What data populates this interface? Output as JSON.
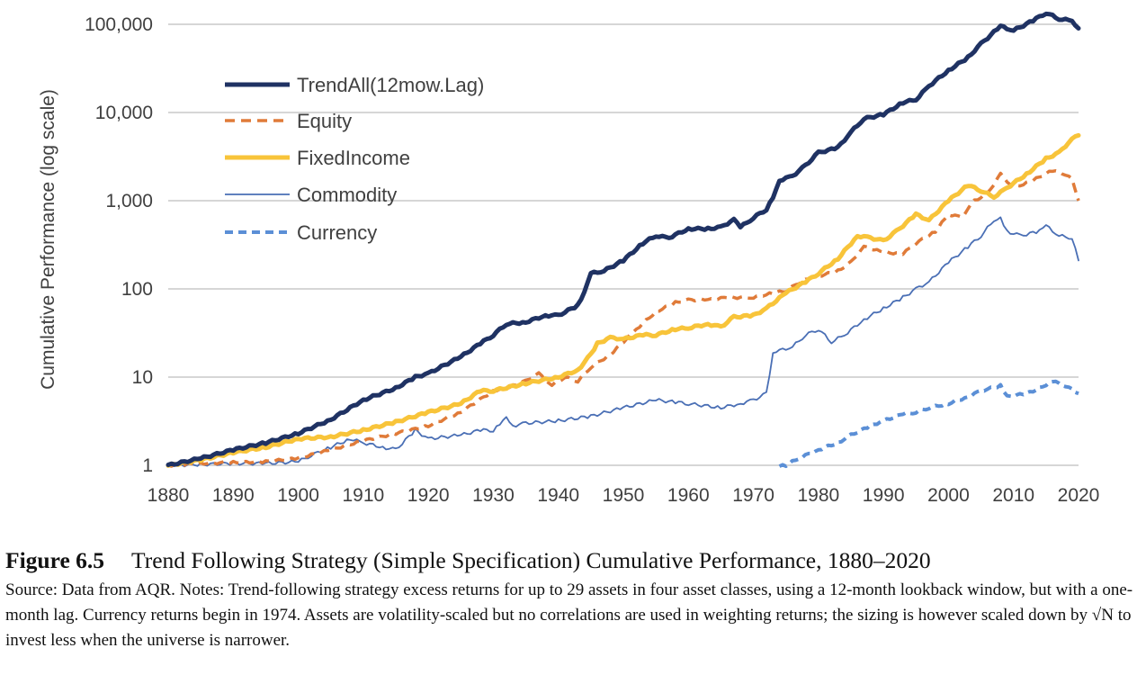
{
  "chart_data": {
    "type": "line",
    "ylabel": "Cumulative Performance (log scale)",
    "xlabel": "",
    "yscale": "log",
    "xlim": [
      1880,
      2020
    ],
    "ylim": [
      1,
      100000
    ],
    "grid": true,
    "legend_position": "top-left",
    "x_ticks": [
      "1880",
      "1890",
      "1900",
      "1910",
      "1920",
      "1930",
      "1940",
      "1950",
      "1960",
      "1970",
      "1980",
      "1990",
      "2000",
      "2010",
      "2020"
    ],
    "y_ticks": [
      {
        "value": 1,
        "label": "1"
      },
      {
        "value": 10,
        "label": "10"
      },
      {
        "value": 100,
        "label": "100"
      },
      {
        "value": 1000,
        "label": "1,000"
      },
      {
        "value": 10000,
        "label": "10,000"
      },
      {
        "value": 100000,
        "label": "100,000"
      }
    ],
    "series": [
      {
        "name": "TrendAll(12mow.Lag)",
        "color": "#1f3263",
        "style": "solid",
        "width": 5,
        "points": [
          [
            1880,
            1
          ],
          [
            1885,
            1.2
          ],
          [
            1890,
            1.5
          ],
          [
            1895,
            1.8
          ],
          [
            1900,
            2.3
          ],
          [
            1905,
            3.3
          ],
          [
            1910,
            5.5
          ],
          [
            1915,
            7.5
          ],
          [
            1918,
            10
          ],
          [
            1920,
            11
          ],
          [
            1925,
            17
          ],
          [
            1928,
            24
          ],
          [
            1930,
            30
          ],
          [
            1932,
            40
          ],
          [
            1935,
            42
          ],
          [
            1938,
            50
          ],
          [
            1940,
            50
          ],
          [
            1943,
            65
          ],
          [
            1944,
            90
          ],
          [
            1945,
            150
          ],
          [
            1947,
            160
          ],
          [
            1950,
            210
          ],
          [
            1953,
            330
          ],
          [
            1955,
            400
          ],
          [
            1957,
            380
          ],
          [
            1960,
            480
          ],
          [
            1963,
            480
          ],
          [
            1965,
            500
          ],
          [
            1967,
            610
          ],
          [
            1968,
            500
          ],
          [
            1970,
            640
          ],
          [
            1972,
            800
          ],
          [
            1973,
            1100
          ],
          [
            1974,
            1700
          ],
          [
            1976,
            1900
          ],
          [
            1978,
            2500
          ],
          [
            1980,
            3500
          ],
          [
            1983,
            4000
          ],
          [
            1985,
            6000
          ],
          [
            1987,
            8500
          ],
          [
            1990,
            9500
          ],
          [
            1993,
            13000
          ],
          [
            1995,
            14000
          ],
          [
            1997,
            20000
          ],
          [
            2000,
            30000
          ],
          [
            2003,
            42000
          ],
          [
            2005,
            60000
          ],
          [
            2008,
            95000
          ],
          [
            2010,
            85000
          ],
          [
            2013,
            110000
          ],
          [
            2015,
            135000
          ],
          [
            2017,
            115000
          ],
          [
            2019,
            110000
          ],
          [
            2020,
            90000
          ]
        ]
      },
      {
        "name": "Equity",
        "color": "#e07b39",
        "style": "dashed",
        "width": 3.5,
        "points": [
          [
            1880,
            1
          ],
          [
            1885,
            1.05
          ],
          [
            1890,
            1.08
          ],
          [
            1895,
            1.1
          ],
          [
            1900,
            1.2
          ],
          [
            1905,
            1.5
          ],
          [
            1910,
            1.9
          ],
          [
            1915,
            2.3
          ],
          [
            1920,
            2.8
          ],
          [
            1925,
            4
          ],
          [
            1930,
            7
          ],
          [
            1933,
            8
          ],
          [
            1935,
            9
          ],
          [
            1937,
            11
          ],
          [
            1939,
            8
          ],
          [
            1941,
            10
          ],
          [
            1943,
            9
          ],
          [
            1945,
            13
          ],
          [
            1948,
            18
          ],
          [
            1952,
            35
          ],
          [
            1955,
            55
          ],
          [
            1958,
            70
          ],
          [
            1960,
            75
          ],
          [
            1963,
            75
          ],
          [
            1966,
            80
          ],
          [
            1970,
            80
          ],
          [
            1973,
            90
          ],
          [
            1975,
            95
          ],
          [
            1978,
            130
          ],
          [
            1980,
            140
          ],
          [
            1983,
            160
          ],
          [
            1985,
            200
          ],
          [
            1987,
            300
          ],
          [
            1990,
            260
          ],
          [
            1993,
            250
          ],
          [
            1995,
            330
          ],
          [
            1998,
            450
          ],
          [
            2000,
            700
          ],
          [
            2002,
            650
          ],
          [
            2004,
            1000
          ],
          [
            2006,
            1200
          ],
          [
            2008,
            2000
          ],
          [
            2010,
            1400
          ],
          [
            2013,
            1700
          ],
          [
            2016,
            2200
          ],
          [
            2018,
            2000
          ],
          [
            2019,
            1800
          ],
          [
            2020,
            1000
          ]
        ]
      },
      {
        "name": "FixedIncome",
        "color": "#f8c43a",
        "style": "solid",
        "width": 5,
        "points": [
          [
            1880,
            1
          ],
          [
            1885,
            1.15
          ],
          [
            1890,
            1.4
          ],
          [
            1895,
            1.6
          ],
          [
            1900,
            2.0
          ],
          [
            1905,
            2.1
          ],
          [
            1910,
            2.5
          ],
          [
            1915,
            3.1
          ],
          [
            1920,
            4
          ],
          [
            1925,
            5
          ],
          [
            1928,
            7
          ],
          [
            1930,
            7
          ],
          [
            1935,
            8.5
          ],
          [
            1940,
            10
          ],
          [
            1943,
            12
          ],
          [
            1945,
            18
          ],
          [
            1946,
            24
          ],
          [
            1948,
            28
          ],
          [
            1950,
            27
          ],
          [
            1953,
            30
          ],
          [
            1955,
            30
          ],
          [
            1958,
            35
          ],
          [
            1960,
            36
          ],
          [
            1963,
            40
          ],
          [
            1965,
            37
          ],
          [
            1967,
            48
          ],
          [
            1970,
            50
          ],
          [
            1972,
            60
          ],
          [
            1975,
            90
          ],
          [
            1978,
            120
          ],
          [
            1980,
            150
          ],
          [
            1983,
            220
          ],
          [
            1986,
            400
          ],
          [
            1988,
            380
          ],
          [
            1990,
            350
          ],
          [
            1992,
            450
          ],
          [
            1995,
            700
          ],
          [
            1997,
            600
          ],
          [
            2000,
            1000
          ],
          [
            2003,
            1500
          ],
          [
            2005,
            1300
          ],
          [
            2007,
            1100
          ],
          [
            2009,
            1400
          ],
          [
            2012,
            2000
          ],
          [
            2015,
            3000
          ],
          [
            2017,
            3500
          ],
          [
            2019,
            5000
          ],
          [
            2020,
            5500
          ]
        ]
      },
      {
        "name": "Commodity",
        "color": "#4a6fb5",
        "style": "solid",
        "width": 1.8,
        "points": [
          [
            1880,
            1
          ],
          [
            1885,
            1.02
          ],
          [
            1890,
            1.05
          ],
          [
            1895,
            1.05
          ],
          [
            1900,
            1.1
          ],
          [
            1902,
            1.3
          ],
          [
            1905,
            1.6
          ],
          [
            1908,
            2.0
          ],
          [
            1910,
            1.8
          ],
          [
            1913,
            1.6
          ],
          [
            1915,
            1.5
          ],
          [
            1918,
            2.5
          ],
          [
            1920,
            2.0
          ],
          [
            1925,
            2.2
          ],
          [
            1928,
            2.5
          ],
          [
            1930,
            2.5
          ],
          [
            1931,
            3.0
          ],
          [
            1932,
            3.6
          ],
          [
            1933,
            2.8
          ],
          [
            1935,
            3.0
          ],
          [
            1940,
            3.2
          ],
          [
            1945,
            3.6
          ],
          [
            1950,
            4.5
          ],
          [
            1955,
            5.5
          ],
          [
            1958,
            5.2
          ],
          [
            1960,
            5.0
          ],
          [
            1965,
            4.5
          ],
          [
            1968,
            5.0
          ],
          [
            1970,
            5.5
          ],
          [
            1972,
            6.5
          ],
          [
            1973,
            18
          ],
          [
            1974,
            20
          ],
          [
            1976,
            22
          ],
          [
            1978,
            30
          ],
          [
            1980,
            35
          ],
          [
            1982,
            25
          ],
          [
            1984,
            30
          ],
          [
            1987,
            45
          ],
          [
            1990,
            60
          ],
          [
            1993,
            80
          ],
          [
            1995,
            100
          ],
          [
            1997,
            120
          ],
          [
            2000,
            200
          ],
          [
            2003,
            300
          ],
          [
            2005,
            400
          ],
          [
            2007,
            600
          ],
          [
            2008,
            650
          ],
          [
            2009,
            450
          ],
          [
            2011,
            400
          ],
          [
            2014,
            450
          ],
          [
            2015,
            520
          ],
          [
            2017,
            400
          ],
          [
            2019,
            380
          ],
          [
            2020,
            210
          ]
        ]
      },
      {
        "name": "Currency",
        "color": "#5b8fd6",
        "style": "dashed",
        "width": 4,
        "points": [
          [
            1974,
            1
          ],
          [
            1975,
            1.0
          ],
          [
            1977,
            1.2
          ],
          [
            1980,
            1.5
          ],
          [
            1983,
            1.8
          ],
          [
            1985,
            2.2
          ],
          [
            1988,
            2.8
          ],
          [
            1990,
            3.2
          ],
          [
            1993,
            3.8
          ],
          [
            1995,
            4.0
          ],
          [
            1997,
            4.5
          ],
          [
            2000,
            5.0
          ],
          [
            2003,
            6.0
          ],
          [
            2005,
            7.0
          ],
          [
            2008,
            8.0
          ],
          [
            2009,
            6.0
          ],
          [
            2012,
            6.5
          ],
          [
            2015,
            8.0
          ],
          [
            2016,
            9.0
          ],
          [
            2018,
            8.0
          ],
          [
            2020,
            6.5
          ]
        ]
      }
    ]
  },
  "caption": {
    "figure_number": "Figure 6.5",
    "title": "Trend Following Strategy (Simple Specification) Cumulative Performance, 1880–2020",
    "notes": "Source: Data from AQR. Notes: Trend-following strategy excess returns for up to 29 assets in four asset classes, using a 12-month lookback window, but with a one-month lag. Currency returns begin in 1974. Assets are volatility-scaled but no correlations are used in weighting returns; the sizing is however scaled down by √N to invest less when the universe is narrower."
  }
}
